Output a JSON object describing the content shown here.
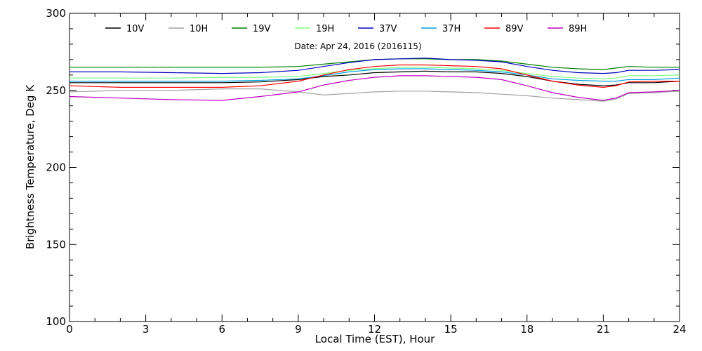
{
  "chart_data": {
    "type": "line",
    "title": "Date: Apr 24, 2016 (2016115)",
    "xlabel": "Local Time (EST), Hour",
    "ylabel": "Brightness Temperature, Deg K",
    "xlim": [
      0,
      24
    ],
    "ylim": [
      100,
      300
    ],
    "xticks": [
      0,
      3,
      6,
      9,
      12,
      15,
      18,
      21,
      24
    ],
    "yticks": [
      100,
      150,
      200,
      250,
      300
    ],
    "grid": false,
    "legend_position": "top",
    "x": [
      0,
      2,
      4,
      6,
      7.5,
      9,
      10,
      11,
      12,
      13,
      14,
      15,
      16,
      17,
      18,
      19,
      20,
      21,
      21.5,
      22,
      23,
      24
    ],
    "series": [
      {
        "name": "10V",
        "color": "#000000",
        "values": [
          255,
          255,
          255,
          255,
          255.5,
          257,
          259,
          260,
          261.5,
          262,
          262.5,
          262,
          262,
          261,
          259,
          256,
          254,
          253,
          253.5,
          255,
          255,
          256
        ]
      },
      {
        "name": "10H",
        "color": "#a0a0a0",
        "values": [
          249,
          250,
          250,
          251,
          251,
          249,
          247,
          248,
          249,
          249.5,
          249.5,
          249,
          248.5,
          247.5,
          246.5,
          245,
          244,
          243,
          244.5,
          248,
          248.5,
          249.5
        ]
      },
      {
        "name": "19V",
        "color": "#008000",
        "values": [
          265,
          265,
          265,
          265,
          265,
          265.5,
          267,
          268.5,
          270,
          270.5,
          270.5,
          270,
          270,
          269,
          267,
          265,
          264,
          263.5,
          264.5,
          265.5,
          265,
          265
        ]
      },
      {
        "name": "19H",
        "color": "#80ff80",
        "values": [
          258,
          258,
          258,
          258.5,
          258.5,
          259,
          261,
          263,
          264,
          265,
          265,
          264.5,
          264,
          263,
          261,
          259,
          258,
          257.5,
          258,
          259.5,
          259.5,
          260
        ]
      },
      {
        "name": "37V",
        "color": "#0000c0",
        "values": [
          262,
          262,
          261.5,
          261,
          261.5,
          263,
          265.5,
          268,
          270,
          270.5,
          271,
          270,
          269.5,
          268.5,
          265.5,
          263,
          261.5,
          261,
          261.5,
          263,
          263,
          263.5
        ]
      },
      {
        "name": "37H",
        "color": "#00a0e0",
        "values": [
          256,
          256,
          256,
          256,
          256.5,
          257.5,
          259.5,
          262,
          263.5,
          264,
          264,
          263.5,
          263,
          262,
          260,
          257.5,
          256.5,
          256,
          256,
          257,
          257,
          258
        ]
      },
      {
        "name": "89V",
        "color": "#ff0000",
        "values": [
          253,
          252,
          252,
          252,
          253,
          256,
          260,
          263.5,
          265.5,
          266.5,
          266.5,
          266,
          265.5,
          264,
          260,
          256,
          253.5,
          252,
          253,
          255.5,
          256,
          256
        ]
      },
      {
        "name": "89H",
        "color": "#c000c0",
        "values": [
          246,
          245,
          244,
          243.5,
          246,
          249,
          253.5,
          256.5,
          258.5,
          259.5,
          259.5,
          259,
          258.5,
          257,
          253,
          248.5,
          245.5,
          243.5,
          245,
          248.5,
          249,
          250
        ]
      }
    ]
  }
}
